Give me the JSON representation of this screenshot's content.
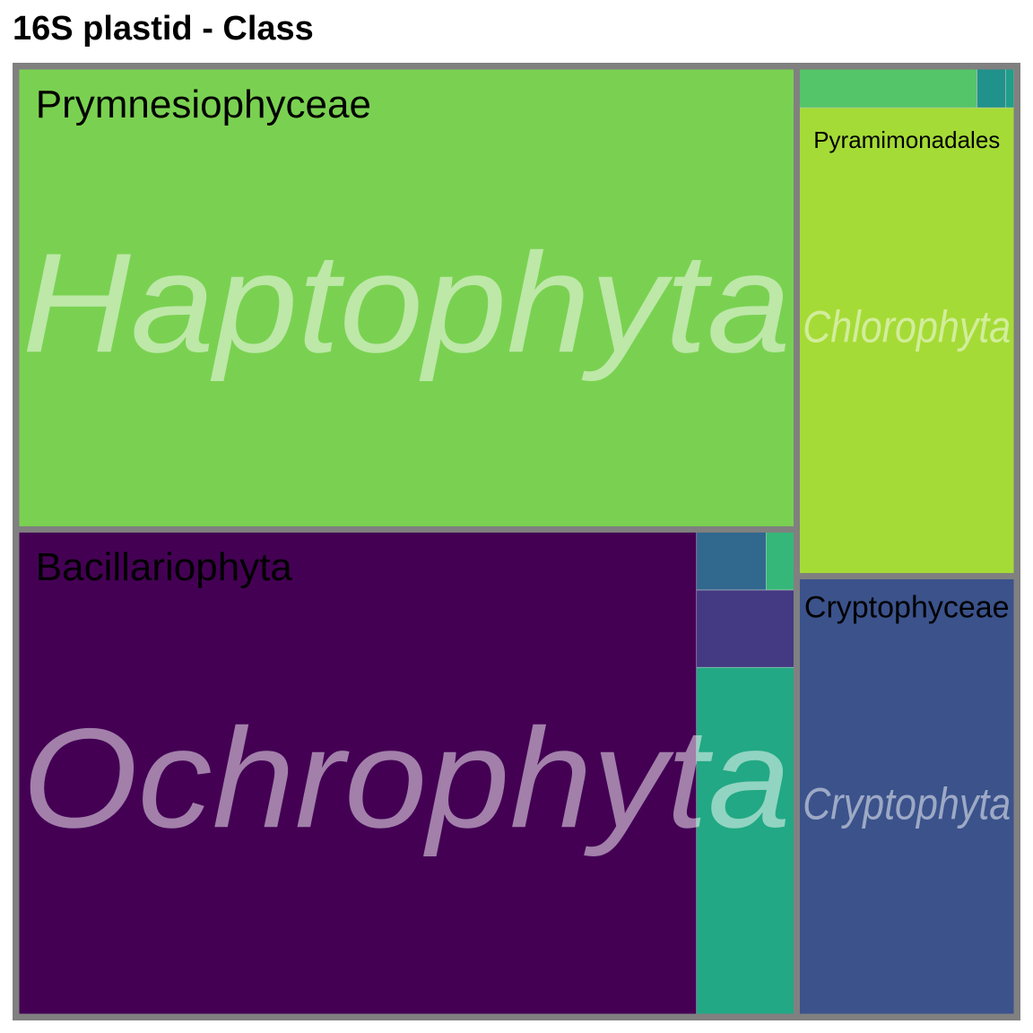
{
  "chart_data": {
    "type": "treemap",
    "title": "16S plastid - Class",
    "border_color": "#808080",
    "groups": [
      {
        "name": "Haptophyta",
        "value": 38.0,
        "children": [
          {
            "name": "Prymnesiophyceae",
            "value": 38.0,
            "color": "#7ad151",
            "show_label": true
          }
        ]
      },
      {
        "name": "Ochrophyta",
        "value": 40.0,
        "children": [
          {
            "name": "Bacillariophyta",
            "value": 34.5,
            "color": "#440154",
            "show_label": true
          },
          {
            "name": "",
            "value": 3.6,
            "color": "#22a884",
            "show_label": false
          },
          {
            "name": "",
            "value": 0.8,
            "color": "#443983",
            "show_label": false
          },
          {
            "name": "",
            "value": 0.43,
            "color": "#31688e",
            "show_label": false
          },
          {
            "name": "",
            "value": 0.18,
            "color": "#35b779",
            "show_label": false
          }
        ]
      },
      {
        "name": "Chlorophyta",
        "value": 11.8,
        "children": [
          {
            "name": "Pyramimonadales",
            "value": 10.7,
            "color": "#a5db36",
            "show_label": true
          },
          {
            "name": "",
            "value": 0.75,
            "color": "#54c568",
            "show_label": false
          },
          {
            "name": "",
            "value": 0.12,
            "color": "#21918c",
            "show_label": false
          },
          {
            "name": "",
            "value": 0.035,
            "color": "#1f9e89",
            "show_label": false
          },
          {
            "name": "",
            "value": 0.006,
            "color": "#fde725",
            "show_label": false
          }
        ]
      },
      {
        "name": "Cryptophyta",
        "value": 10.2,
        "children": [
          {
            "name": "Cryptophyceae",
            "value": 10.2,
            "color": "#3b528b",
            "show_label": true
          }
        ]
      }
    ]
  }
}
